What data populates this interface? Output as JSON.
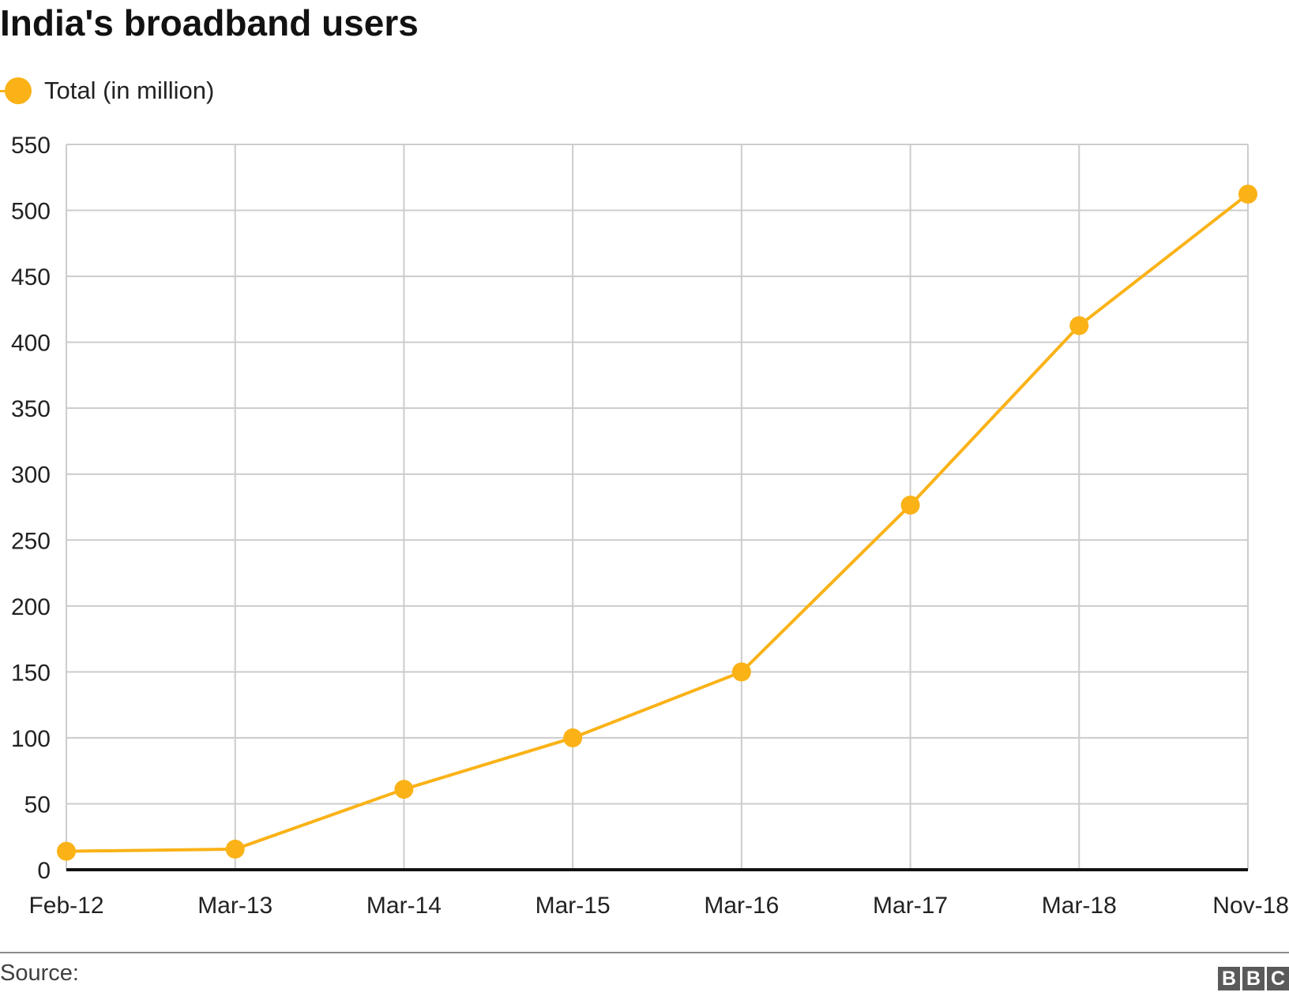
{
  "chart_data": {
    "type": "line",
    "title": "India's broadband users",
    "xlabel": "",
    "ylabel": "",
    "categories": [
      "Feb-12",
      "Mar-13",
      "Mar-14",
      "Mar-15",
      "Mar-16",
      "Mar-17",
      "Mar-18",
      "Nov-18"
    ],
    "series": [
      {
        "name": "Total (in million)",
        "values": [
          14,
          15.6,
          61,
          100,
          150,
          276.5,
          412.6,
          512.3
        ],
        "color": "#fab217"
      }
    ],
    "ylim": [
      0,
      550
    ],
    "yticks": [
      0,
      50,
      100,
      150,
      200,
      250,
      300,
      350,
      400,
      450,
      500,
      550
    ],
    "grid": true,
    "legend_position": "top-left"
  },
  "footer": {
    "source_label": "Source:",
    "logo_letters": [
      "B",
      "B",
      "C"
    ]
  }
}
